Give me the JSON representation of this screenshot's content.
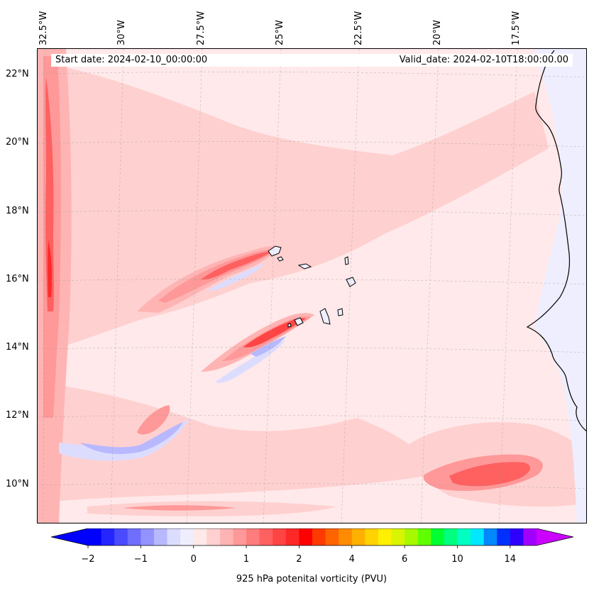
{
  "map": {
    "title": "",
    "lon_labels": [
      "32.5°W",
      "30°W",
      "27.5°W",
      "25°W",
      "22.5°W",
      "20°W",
      "17.5°W"
    ],
    "lat_labels": [
      "22°N",
      "20°N",
      "18°N",
      "16°N",
      "14°N",
      "12°N",
      "10°N"
    ],
    "start_date": "Start date: 2024-02-10_00:00:00",
    "valid_date": "Valid_date: 2024-02-10T18:00:00.00",
    "land_color": "#eeeeff",
    "coast_color": "#000000",
    "field": "925 hPa potential vorticity",
    "features": [
      "meridional high-PV band along 32.5°W",
      "high-PV streak ending near Santo Antão (≈17°N 25°W)",
      "high-PV streak ending near Santiago/Fogo (≈15°N 24.5°W)",
      "high-PV maximum near 10.5°N 18°W",
      "Cabo Verde islands",
      "West African coastline (Senegal / Guinea-Bissau)"
    ]
  },
  "chart_data": {
    "type": "heatmap",
    "variable": "925 hPa potenital vorticity (PVU)",
    "colorbar_label": "925 hPa potenital vorticity (PVU)",
    "colorbar_ticks": [
      "−2",
      "−1",
      "0",
      "1",
      "2",
      "4",
      "6",
      "10",
      "14"
    ],
    "levels": [
      -2,
      -1.75,
      -1.5,
      -1.25,
      -1,
      -0.75,
      -0.5,
      -0.25,
      0,
      0.25,
      0.5,
      0.75,
      1,
      1.25,
      1.5,
      1.75,
      2,
      2.5,
      3,
      3.5,
      4,
      4.5,
      5,
      5.5,
      6,
      7,
      8,
      9,
      10,
      11,
      12,
      13,
      14,
      15
    ],
    "colors": [
      "#0000ff",
      "#2525ff",
      "#4a4aff",
      "#6e6eff",
      "#9393ff",
      "#b8b8ff",
      "#dcdcff",
      "#eeeeff",
      "#ffe8e8",
      "#ffd0d0",
      "#ffb4b4",
      "#ff9898",
      "#ff7c7c",
      "#ff6060",
      "#ff4444",
      "#ff2828",
      "#ff0000",
      "#ff3a00",
      "#ff6400",
      "#ff8c00",
      "#ffb000",
      "#ffd200",
      "#fff000",
      "#d8f400",
      "#a8f800",
      "#60ff00",
      "#00ff30",
      "#00ff80",
      "#00ffc0",
      "#00e8ff",
      "#0088ff",
      "#0030ff",
      "#3000ff",
      "#a000ff"
    ],
    "extend_low_color": "#0000ff",
    "extend_high_color": "#cc00ff",
    "xlim": [
      -33,
      -15.5
    ],
    "ylim": [
      8.5,
      23
    ],
    "lon_ticks": [
      -32.5,
      -30,
      -27.5,
      -25,
      -22.5,
      -20,
      -17.5
    ],
    "lat_ticks": [
      22,
      20,
      18,
      16,
      14,
      12,
      10
    ]
  }
}
